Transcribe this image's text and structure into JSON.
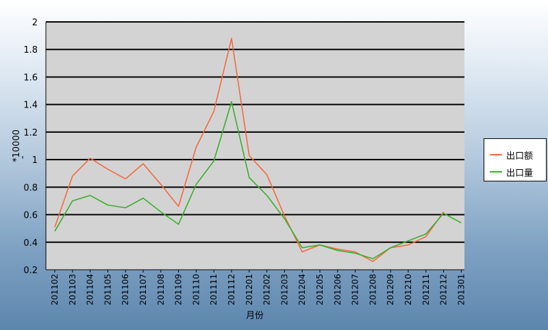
{
  "chart_data": {
    "type": "line",
    "xlabel": "月份",
    "ylabel": "*10000",
    "ylim": [
      0.2,
      2
    ],
    "yticks": [
      "2",
      "1.8",
      "1.6",
      "1.4",
      "1.2",
      "1",
      "0.8",
      "0.6",
      "0.4",
      "0.2"
    ],
    "grid": true,
    "legend_position": "right",
    "categories": [
      "201102",
      "201103",
      "201104",
      "201105",
      "201106",
      "201107",
      "201108",
      "201109",
      "201110",
      "201111",
      "201112",
      "201201",
      "201202",
      "201203",
      "201204",
      "201205",
      "201206",
      "201207",
      "201208",
      "201209",
      "201210",
      "201211",
      "201212",
      "201301"
    ],
    "series": [
      {
        "name": "出口额",
        "color": "#f26a3d",
        "values": [
          0.51,
          0.88,
          1.01,
          0.93,
          0.86,
          0.97,
          0.82,
          0.66,
          1.09,
          1.35,
          1.88,
          1.03,
          0.89,
          0.59,
          0.33,
          0.38,
          0.35,
          0.33,
          0.26,
          0.36,
          0.38,
          0.44,
          0.62,
          null
        ]
      },
      {
        "name": "出口量",
        "color": "#3aae2a",
        "values": [
          0.48,
          0.7,
          0.74,
          0.67,
          0.65,
          0.72,
          0.62,
          0.53,
          0.82,
          0.99,
          1.42,
          0.87,
          0.74,
          0.57,
          0.36,
          0.38,
          0.34,
          0.32,
          0.28,
          0.36,
          0.41,
          0.46,
          0.61,
          0.54
        ]
      }
    ]
  }
}
